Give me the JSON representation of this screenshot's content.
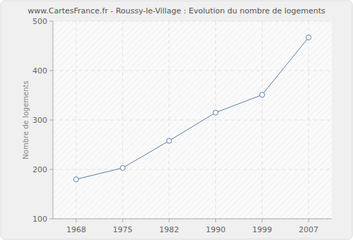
{
  "chart_data": {
    "type": "line",
    "title": "www.CartesFrance.fr - Roussy-le-Village : Evolution du nombre de logements",
    "y_label": "Nombre de logements",
    "categories": [
      "1968",
      "1975",
      "1982",
      "1990",
      "1999",
      "2007"
    ],
    "values": [
      180,
      203,
      258,
      315,
      351,
      467
    ],
    "color": "#5b7fa6",
    "marker": "circle",
    "ylim": [
      100,
      500
    ],
    "yticks": [
      100,
      200,
      300,
      400,
      500
    ],
    "grid": true
  }
}
